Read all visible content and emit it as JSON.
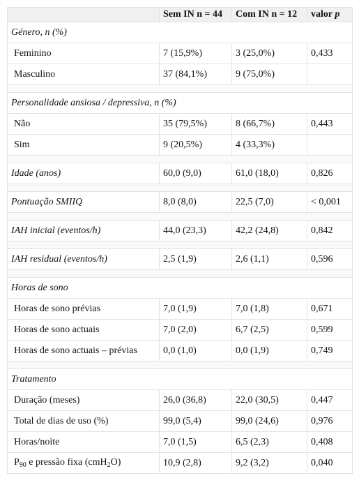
{
  "header": {
    "col1": "",
    "col2": "Sem IN n = 44",
    "col3": "Com IN n = 12",
    "col4_prefix": "valor ",
    "col4_italic": "p"
  },
  "genero": {
    "title": "Género, n (%)",
    "rows": [
      {
        "label": "Feminino",
        "sem": "7 (15,9%)",
        "com": "3 (25,0%)",
        "p": "0,433"
      },
      {
        "label": "Masculino",
        "sem": "37 (84,1%)",
        "com": "9 (75,0%)",
        "p": ""
      }
    ]
  },
  "personalidade": {
    "title": "Personalidade ansiosa / depressiva, n (%)",
    "rows": [
      {
        "label": "Não",
        "sem": "35 (79,5%)",
        "com": "8 (66,7%)",
        "p": "0,443"
      },
      {
        "label": "Sim",
        "sem": "9 (20,5%)",
        "com": "4 (33,3%)",
        "p": ""
      }
    ]
  },
  "idade": {
    "label": "Idade (anos)",
    "sem": "60,0 (9,0)",
    "com": "61,0 (18,0)",
    "p": "0,826"
  },
  "smiiq": {
    "label": "Pontuação SMIIQ",
    "sem": "8,0 (8,0)",
    "com": "22,5 (7,0)",
    "p": "< 0,001"
  },
  "iah_inicial": {
    "label": "IAH inicial (eventos/h)",
    "sem": "44,0 (23,3)",
    "com": "42,2 (24,8)",
    "p": "0,842"
  },
  "iah_residual": {
    "label": "IAH residual (eventos/h)",
    "sem": "2,5 (1,9)",
    "com": "2,6 (1,1)",
    "p": "0,596"
  },
  "sono": {
    "title": "Horas de sono",
    "rows": [
      {
        "label": "Horas de sono prévias",
        "sem": "7,0 (1,9)",
        "com": "7,0 (1,8)",
        "p": "0,671"
      },
      {
        "label": "Horas de sono actuais",
        "sem": "7,0 (2,0)",
        "com": "6,7 (2,5)",
        "p": "0,599"
      },
      {
        "label": "Horas de sono actuais – prévias",
        "sem": "0,0 (1,0)",
        "com": "0,0 (1,9)",
        "p": "0,749"
      }
    ]
  },
  "tratamento": {
    "title": "Tratamento",
    "rows": [
      {
        "label": "Duração (meses)",
        "sem": "26,0 (36,8)",
        "com": "22,0 (30,5)",
        "p": "0,447"
      },
      {
        "label": "Total de dias de uso (%)",
        "sem": "99,0 (5,4)",
        "com": "99,0 (24,6)",
        "p": "0,976"
      },
      {
        "label": "Horas/noite",
        "sem": "7,0 (1,5)",
        "com": "6,5 (2,3)",
        "p": "0,408"
      }
    ],
    "last": {
      "label_p": "P",
      "label_sub": "90",
      "label_mid": " e pressão fixa (cmH",
      "label_sub2": "2",
      "label_end": "O)",
      "sem": "10,9 (2,8)",
      "com": "9,2 (3,2)",
      "p": "0,040"
    }
  }
}
